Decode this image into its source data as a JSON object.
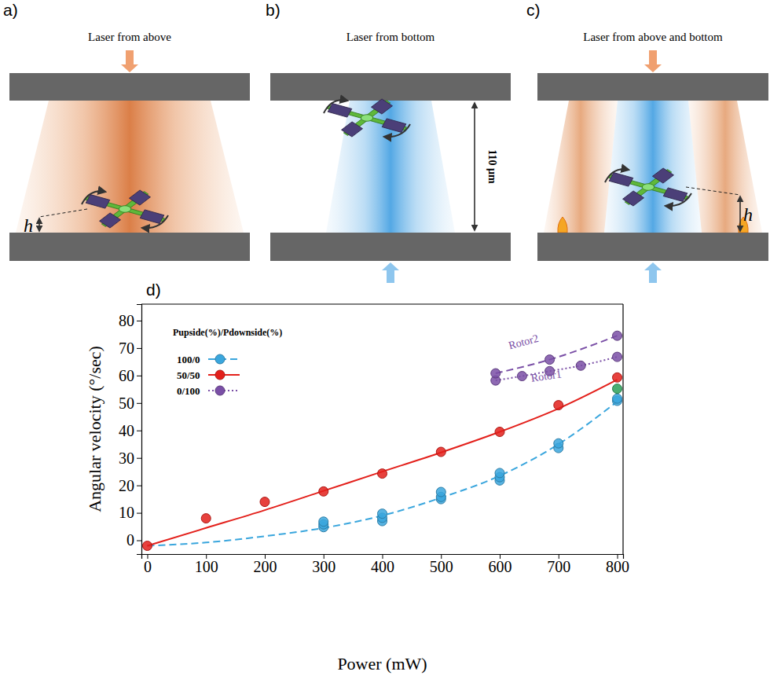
{
  "figure": {
    "panels": [
      {
        "letter": "a)",
        "title": "Laser from above",
        "labels": [
          "h"
        ]
      },
      {
        "letter": "b)",
        "title": "Laser from bottom",
        "labels": [
          "110 μm"
        ]
      },
      {
        "letter": "c)",
        "title": "Laser from above and bottom",
        "labels": [
          "h"
        ]
      }
    ],
    "chart_letter": "d)"
  },
  "chart_data": {
    "type": "scatter",
    "xlabel": "Power (mW)",
    "ylabel": "Angular velocity (°/sec)",
    "legend_title": "Pupside(%)/Pdownside(%)",
    "legend": "upper left",
    "xlim": [
      -10,
      810
    ],
    "ylim": [
      -5,
      86
    ],
    "xticks": [
      0,
      100,
      200,
      300,
      400,
      500,
      600,
      700,
      800
    ],
    "yticks": [
      0,
      10,
      20,
      30,
      40,
      50,
      60,
      70,
      80
    ],
    "series": [
      {
        "name": "100/0",
        "color": "#3aa6dd",
        "marker": "circle",
        "line_style": "dashed",
        "x": [
          300,
          300,
          300,
          400,
          400,
          400,
          500,
          500,
          500,
          600,
          600,
          600,
          700,
          700,
          800,
          800
        ],
        "values": [
          4.8,
          5.8,
          6.8,
          7,
          8.2,
          9.7,
          15,
          15.8,
          17.6,
          21.8,
          23,
          24.5,
          33.6,
          35.3,
          50.8,
          51.6
        ],
        "fit": {
          "x": [
            0,
            100,
            200,
            300,
            400,
            500,
            600,
            700,
            800
          ],
          "values": [
            -2,
            -0.8,
            1.5,
            4.5,
            9,
            15.5,
            23.5,
            35,
            50.5
          ]
        }
      },
      {
        "name": "50/50",
        "color": "#e3201b",
        "marker": "circle",
        "line_style": "solid",
        "x": [
          0,
          100,
          200,
          300,
          400,
          500,
          600,
          700,
          800
        ],
        "values": [
          -2,
          8,
          14,
          17.8,
          24.3,
          32.2,
          39.5,
          49.2,
          59.3
        ],
        "fit": {
          "x": [
            0,
            100,
            200,
            300,
            400,
            500,
            600,
            700,
            800
          ],
          "values": [
            -2,
            4.5,
            11,
            18,
            25,
            32,
            39.5,
            48,
            58.5
          ]
        }
      },
      {
        "name": "0/100",
        "color": "#7a4fa6",
        "marker": "circle",
        "line_style": "dotted",
        "x": [
          593,
          638,
          685,
          738,
          800
        ],
        "values": [
          58.2,
          59.8,
          61.6,
          63.6,
          66.8
        ]
      },
      {
        "color": "#7a4fa6",
        "marker": "circle",
        "line_style": "dashed",
        "x": [
          593,
          685,
          800
        ],
        "values": [
          60.8,
          65.8,
          74.5
        ]
      },
      {
        "color": "#2ca05a",
        "marker": "circle",
        "x": [
          800
        ],
        "values": [
          55.2
        ]
      }
    ],
    "annotations": [
      {
        "text": "Rotor2",
        "x": 642,
        "y": 71
      },
      {
        "text": "Rotor1",
        "x": 680,
        "y": 58.5
      }
    ]
  }
}
